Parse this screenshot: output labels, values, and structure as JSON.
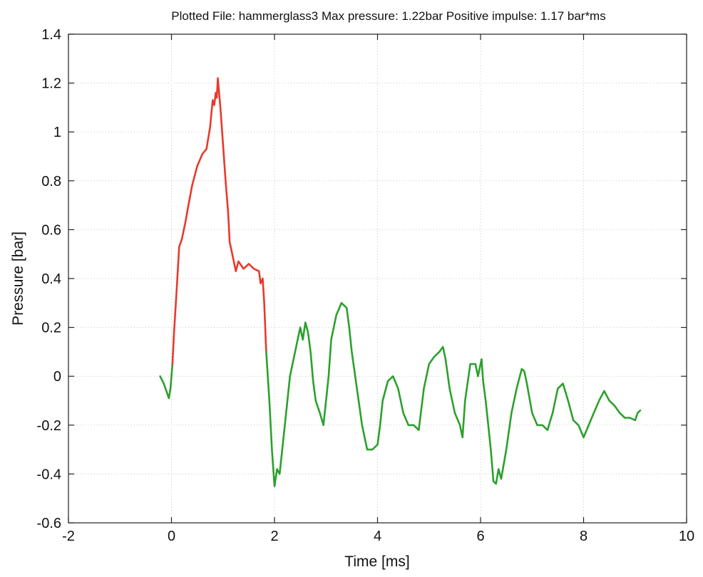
{
  "chart_data": {
    "type": "line",
    "title": "Plotted File: hammerglass3  Max pressure: 1.22bar   Positive impulse: 1.17 bar*ms",
    "xlabel": "Time [ms]",
    "ylabel": "Pressure [bar]",
    "xlim": [
      -2,
      10
    ],
    "ylim": [
      -0.6,
      1.4
    ],
    "xticks": [
      -2,
      0,
      2,
      4,
      6,
      8,
      10
    ],
    "yticks": [
      -0.6,
      -0.4,
      -0.2,
      0,
      0.2,
      0.4,
      0.6,
      0.8,
      1,
      1.2,
      1.4
    ],
    "xtick_labels": [
      "-2",
      "0",
      "2",
      "4",
      "6",
      "8",
      "10"
    ],
    "ytick_labels": [
      "-0.6",
      "-0.4",
      "-0.2",
      "0",
      "0.2",
      "0.4",
      "0.6",
      "0.8",
      "1",
      "1.2",
      "1.4"
    ],
    "grid": true,
    "series": [
      {
        "color": "#2ca02c",
        "x": [
          -0.22,
          -0.15,
          -0.1,
          -0.05,
          -0.02,
          0.0,
          0.02
        ],
        "y": [
          0.0,
          -0.03,
          -0.06,
          -0.09,
          -0.05,
          0.0,
          0.05
        ]
      },
      {
        "color": "#e8392b",
        "x": [
          0.02,
          0.05,
          0.1,
          0.15,
          0.2,
          0.27,
          0.33,
          0.4,
          0.5,
          0.6,
          0.68,
          0.75,
          0.8,
          0.83,
          0.86,
          0.88,
          0.9,
          0.92,
          0.95,
          1.0,
          1.05,
          1.1,
          1.13,
          1.16,
          1.2,
          1.25,
          1.3,
          1.4,
          1.5,
          1.6,
          1.7,
          1.73,
          1.77,
          1.8,
          1.84
        ],
        "y": [
          0.05,
          0.18,
          0.35,
          0.53,
          0.56,
          0.63,
          0.7,
          0.78,
          0.86,
          0.91,
          0.93,
          1.02,
          1.13,
          1.11,
          1.16,
          1.14,
          1.22,
          1.17,
          1.1,
          0.95,
          0.8,
          0.67,
          0.55,
          0.52,
          0.48,
          0.43,
          0.47,
          0.44,
          0.46,
          0.44,
          0.43,
          0.38,
          0.4,
          0.3,
          0.1
        ]
      },
      {
        "color": "#2ca02c",
        "x": [
          1.84,
          1.9,
          1.95,
          2.0,
          2.05,
          2.1,
          2.2,
          2.3,
          2.4,
          2.5,
          2.55,
          2.6,
          2.65,
          2.7,
          2.75,
          2.8,
          2.88,
          2.95,
          3.0,
          3.05,
          3.1,
          3.2,
          3.3,
          3.4,
          3.45,
          3.5,
          3.6,
          3.7,
          3.8,
          3.9,
          4.0,
          4.05,
          4.1,
          4.2,
          4.3,
          4.4,
          4.45,
          4.5,
          4.6,
          4.7,
          4.8,
          4.9,
          5.0,
          5.1,
          5.2,
          5.27,
          5.32,
          5.4,
          5.5,
          5.6,
          5.65,
          5.7,
          5.8,
          5.9,
          5.95,
          6.02,
          6.05,
          6.1,
          6.15,
          6.2,
          6.25,
          6.3,
          6.35,
          6.4,
          6.5,
          6.6,
          6.7,
          6.8,
          6.85,
          6.9,
          7.0,
          7.1,
          7.2,
          7.3,
          7.4,
          7.5,
          7.6,
          7.7,
          7.8,
          7.9,
          8.0,
          8.1,
          8.2,
          8.3,
          8.4,
          8.5,
          8.6,
          8.7,
          8.8,
          8.9,
          9.0,
          9.05,
          9.1
        ],
        "y": [
          0.1,
          -0.1,
          -0.3,
          -0.45,
          -0.38,
          -0.4,
          -0.2,
          0.0,
          0.1,
          0.2,
          0.15,
          0.22,
          0.18,
          0.1,
          -0.02,
          -0.1,
          -0.15,
          -0.2,
          -0.1,
          0.0,
          0.15,
          0.25,
          0.3,
          0.28,
          0.2,
          0.1,
          -0.05,
          -0.2,
          -0.3,
          -0.3,
          -0.28,
          -0.2,
          -0.1,
          -0.02,
          0.0,
          -0.05,
          -0.1,
          -0.15,
          -0.2,
          -0.2,
          -0.22,
          -0.05,
          0.05,
          0.08,
          0.1,
          0.12,
          0.07,
          -0.05,
          -0.15,
          -0.2,
          -0.25,
          -0.1,
          0.05,
          0.05,
          0.0,
          0.07,
          -0.02,
          -0.1,
          -0.2,
          -0.3,
          -0.43,
          -0.44,
          -0.38,
          -0.42,
          -0.3,
          -0.15,
          -0.05,
          0.03,
          0.02,
          -0.03,
          -0.15,
          -0.2,
          -0.2,
          -0.22,
          -0.15,
          -0.05,
          -0.03,
          -0.1,
          -0.18,
          -0.2,
          -0.25,
          -0.2,
          -0.15,
          -0.1,
          -0.06,
          -0.1,
          -0.12,
          -0.15,
          -0.17,
          -0.17,
          -0.18,
          -0.15,
          -0.14
        ]
      }
    ]
  }
}
